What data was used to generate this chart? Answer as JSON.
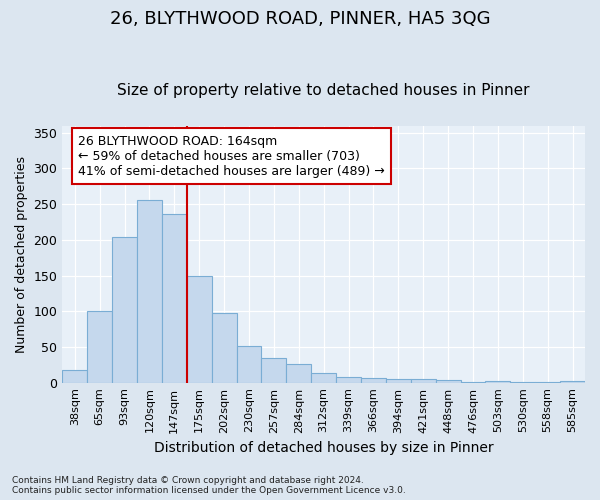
{
  "title": "26, BLYTHWOOD ROAD, PINNER, HA5 3QG",
  "subtitle": "Size of property relative to detached houses in Pinner",
  "xlabel": "Distribution of detached houses by size in Pinner",
  "ylabel": "Number of detached properties",
  "categories": [
    "38sqm",
    "65sqm",
    "93sqm",
    "120sqm",
    "147sqm",
    "175sqm",
    "202sqm",
    "230sqm",
    "257sqm",
    "284sqm",
    "312sqm",
    "339sqm",
    "366sqm",
    "394sqm",
    "421sqm",
    "448sqm",
    "476sqm",
    "503sqm",
    "530sqm",
    "558sqm",
    "585sqm"
  ],
  "values": [
    18,
    100,
    204,
    256,
    236,
    150,
    97,
    52,
    35,
    26,
    14,
    8,
    6,
    5,
    5,
    4,
    1,
    2,
    1,
    1,
    2
  ],
  "bar_color": "#c5d8ed",
  "bar_edge_color": "#7aadd4",
  "vline_color": "#cc0000",
  "annotation_line1": "26 BLYTHWOOD ROAD: 164sqm",
  "annotation_line2": "← 59% of detached houses are smaller (703)",
  "annotation_line3": "41% of semi-detached houses are larger (489) →",
  "annotation_box_color": "#ffffff",
  "annotation_box_edge": "#cc0000",
  "ylim": [
    0,
    360
  ],
  "yticks": [
    0,
    50,
    100,
    150,
    200,
    250,
    300,
    350
  ],
  "background_color": "#dce6f0",
  "plot_bg_color": "#e8f0f8",
  "grid_color": "#ffffff",
  "title_fontsize": 13,
  "subtitle_fontsize": 11,
  "footnote": "Contains HM Land Registry data © Crown copyright and database right 2024.\nContains public sector information licensed under the Open Government Licence v3.0."
}
